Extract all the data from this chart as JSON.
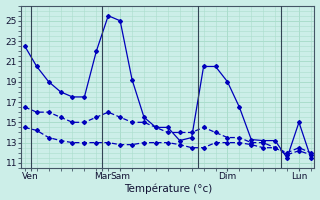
{
  "background_color": "#cceee8",
  "grid_color": "#aaddcc",
  "line_color": "#0000bb",
  "xlabel": "Température (°c)",
  "ylim": [
    10.5,
    26.5
  ],
  "yticks": [
    11,
    13,
    15,
    17,
    19,
    21,
    23,
    25
  ],
  "line1_x": [
    0,
    1,
    2,
    3,
    4,
    5,
    6,
    7,
    8,
    9,
    10,
    11,
    12,
    13,
    14,
    15,
    16,
    17,
    18,
    19,
    20,
    21,
    22,
    23,
    24
  ],
  "line1_y": [
    22.5,
    20.5,
    19.0,
    18.0,
    17.5,
    17.5,
    22.0,
    25.5,
    25.0,
    19.2,
    15.5,
    14.5,
    14.5,
    13.2,
    13.5,
    20.5,
    20.5,
    19.0,
    16.5,
    13.3,
    13.2,
    13.2,
    11.5,
    15.0,
    11.5
  ],
  "line2_x": [
    0,
    1,
    2,
    3,
    4,
    5,
    6,
    7,
    8,
    9,
    10,
    11,
    12,
    13,
    14,
    15,
    16,
    17,
    18,
    19,
    20,
    21,
    22,
    23,
    24
  ],
  "line2_y": [
    16.5,
    16.0,
    16.0,
    15.5,
    15.0,
    15.0,
    15.5,
    16.0,
    15.5,
    15.0,
    15.0,
    14.5,
    14.0,
    14.0,
    14.0,
    14.5,
    14.0,
    13.5,
    13.5,
    13.0,
    13.0,
    12.5,
    12.0,
    12.5,
    12.0
  ],
  "line3_x": [
    0,
    1,
    2,
    3,
    4,
    5,
    6,
    7,
    8,
    9,
    10,
    11,
    12,
    13,
    14,
    15,
    16,
    17,
    18,
    19,
    20,
    21,
    22,
    23,
    24
  ],
  "line3_y": [
    14.5,
    14.2,
    13.5,
    13.2,
    13.0,
    13.0,
    13.0,
    13.0,
    12.8,
    12.8,
    13.0,
    13.0,
    13.0,
    12.8,
    12.5,
    12.5,
    13.0,
    13.0,
    13.0,
    12.8,
    12.5,
    12.5,
    11.8,
    12.2,
    11.8
  ],
  "xtick_positions": [
    0.5,
    6.5,
    8.0,
    17.0,
    23.0
  ],
  "xtick_labels": [
    "Ven",
    "Mar",
    "Sam",
    "Dim",
    "Lun"
  ],
  "x_vlines": [
    0.5,
    6.5,
    14.5,
    21.5
  ],
  "x_minor_ticks": [
    0,
    1,
    2,
    3,
    4,
    5,
    6,
    7,
    8,
    9,
    10,
    11,
    12,
    13,
    14,
    15,
    16,
    17,
    18,
    19,
    20,
    21,
    22,
    23,
    24
  ],
  "total_x_min": -0.3,
  "total_x_max": 24.3
}
